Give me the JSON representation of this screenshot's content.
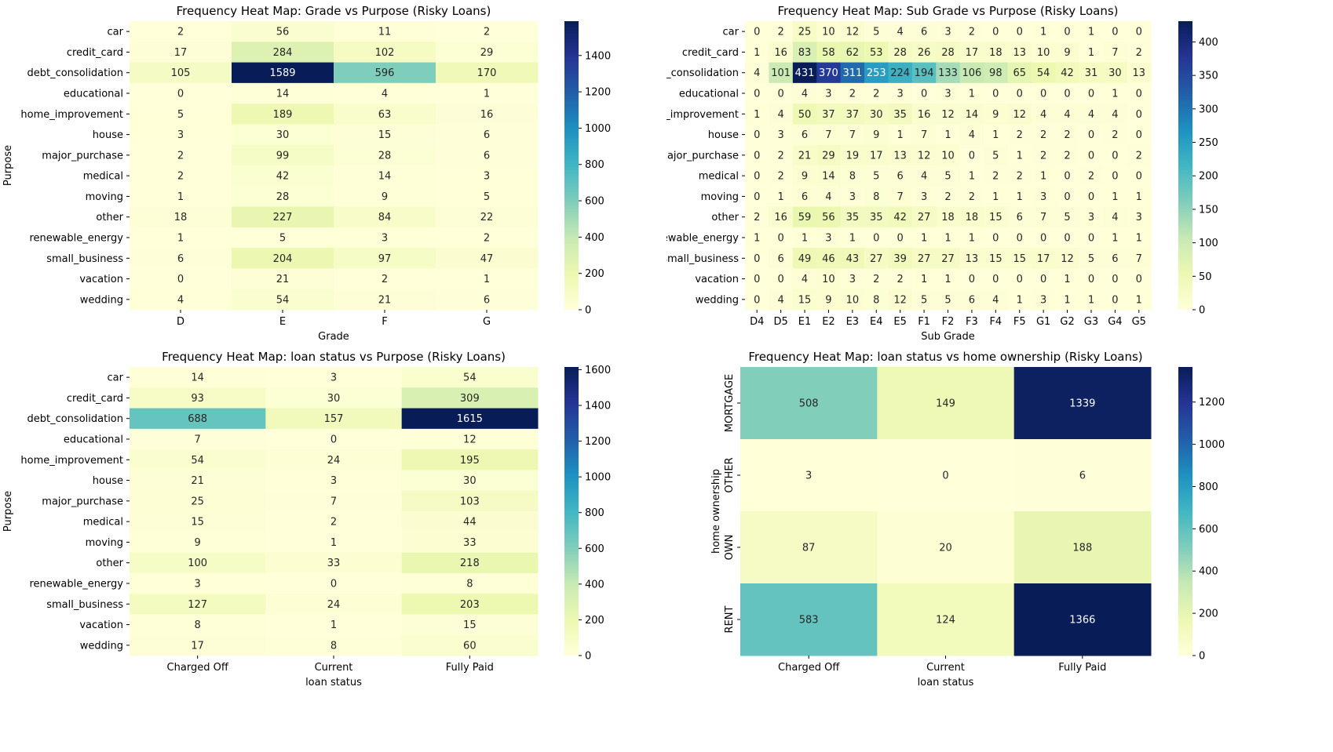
{
  "charts": [
    {
      "type": "heatmap",
      "title": "Frequency Heat Map: Grade vs Purpose (Risky Loans)",
      "xlabel": "Grade",
      "ylabel": "Purpose",
      "x_categories": [
        "D",
        "E",
        "F",
        "G"
      ],
      "y_categories": [
        "car",
        "credit_card",
        "debt_consolidation",
        "educational",
        "home_improvement",
        "house",
        "major_purchase",
        "medical",
        "moving",
        "other",
        "renewable_energy",
        "small_business",
        "vacation",
        "wedding"
      ],
      "values": [
        [
          2,
          56,
          11,
          2
        ],
        [
          17,
          284,
          102,
          29
        ],
        [
          105,
          1589,
          596,
          170
        ],
        [
          0,
          14,
          4,
          1
        ],
        [
          5,
          189,
          63,
          16
        ],
        [
          3,
          30,
          15,
          6
        ],
        [
          2,
          99,
          28,
          6
        ],
        [
          2,
          42,
          14,
          3
        ],
        [
          1,
          28,
          9,
          5
        ],
        [
          18,
          227,
          84,
          22
        ],
        [
          1,
          5,
          3,
          2
        ],
        [
          6,
          204,
          97,
          47
        ],
        [
          0,
          21,
          2,
          1
        ],
        [
          4,
          54,
          21,
          6
        ]
      ],
      "vmin": 0,
      "vmax": 1589,
      "colorbar_ticks": [
        0,
        200,
        400,
        600,
        800,
        1000,
        1200,
        1400
      ],
      "colormap": "YlGnBu",
      "rotate_y_ticks": false
    },
    {
      "type": "heatmap",
      "title": "Frequency Heat Map: Sub Grade vs Purpose (Risky Loans)",
      "xlabel": "Sub Grade",
      "ylabel": "Purpose",
      "x_categories": [
        "D4",
        "D5",
        "E1",
        "E2",
        "E3",
        "E4",
        "E5",
        "F1",
        "F2",
        "F3",
        "F4",
        "F5",
        "G1",
        "G2",
        "G3",
        "G4",
        "G5"
      ],
      "y_categories": [
        "car",
        "credit_card",
        "debt_consolidation",
        "educational",
        "home_improvement",
        "house",
        "major_purchase",
        "medical",
        "moving",
        "other",
        "renewable_energy",
        "small_business",
        "vacation",
        "wedding"
      ],
      "values": [
        [
          0,
          2,
          25,
          10,
          12,
          5,
          4,
          6,
          3,
          2,
          0,
          0,
          1,
          0,
          1,
          0,
          0
        ],
        [
          1,
          16,
          83,
          58,
          62,
          53,
          28,
          26,
          28,
          17,
          18,
          13,
          10,
          9,
          1,
          7,
          2
        ],
        [
          4,
          101,
          431,
          370,
          311,
          253,
          224,
          194,
          133,
          106,
          98,
          65,
          54,
          42,
          31,
          30,
          13
        ],
        [
          0,
          0,
          4,
          3,
          2,
          2,
          3,
          0,
          3,
          1,
          0,
          0,
          0,
          0,
          0,
          1,
          0
        ],
        [
          1,
          4,
          50,
          37,
          37,
          30,
          35,
          16,
          12,
          14,
          9,
          12,
          4,
          4,
          4,
          4,
          0
        ],
        [
          0,
          3,
          6,
          7,
          7,
          9,
          1,
          7,
          1,
          4,
          1,
          2,
          2,
          2,
          0,
          2,
          0
        ],
        [
          0,
          2,
          21,
          29,
          19,
          17,
          13,
          12,
          10,
          0,
          5,
          1,
          2,
          2,
          0,
          0,
          2
        ],
        [
          0,
          2,
          9,
          14,
          8,
          5,
          6,
          4,
          5,
          1,
          2,
          2,
          1,
          0,
          2,
          0,
          0
        ],
        [
          0,
          1,
          6,
          4,
          3,
          8,
          7,
          3,
          2,
          2,
          1,
          1,
          3,
          0,
          0,
          1,
          1
        ],
        [
          2,
          16,
          59,
          56,
          35,
          35,
          42,
          27,
          18,
          18,
          15,
          6,
          7,
          5,
          3,
          4,
          3
        ],
        [
          1,
          0,
          1,
          3,
          1,
          0,
          0,
          1,
          1,
          1,
          0,
          0,
          0,
          0,
          0,
          1,
          1
        ],
        [
          0,
          6,
          49,
          46,
          43,
          27,
          39,
          27,
          27,
          13,
          15,
          15,
          17,
          12,
          5,
          6,
          7
        ],
        [
          0,
          0,
          4,
          10,
          3,
          2,
          2,
          1,
          1,
          0,
          0,
          0,
          0,
          1,
          0,
          0,
          0
        ],
        [
          0,
          4,
          15,
          9,
          10,
          8,
          12,
          5,
          5,
          6,
          4,
          1,
          3,
          1,
          1,
          0,
          1
        ]
      ],
      "vmin": 0,
      "vmax": 431,
      "colorbar_ticks": [
        0,
        50,
        100,
        150,
        200,
        250,
        300,
        350,
        400
      ],
      "colormap": "YlGnBu",
      "rotate_y_ticks": false
    },
    {
      "type": "heatmap",
      "title": "Frequency Heat Map: loan status vs Purpose (Risky Loans)",
      "xlabel": "loan status",
      "ylabel": "Purpose",
      "x_categories": [
        "Charged Off",
        "Current",
        "Fully Paid"
      ],
      "y_categories": [
        "car",
        "credit_card",
        "debt_consolidation",
        "educational",
        "home_improvement",
        "house",
        "major_purchase",
        "medical",
        "moving",
        "other",
        "renewable_energy",
        "small_business",
        "vacation",
        "wedding"
      ],
      "values": [
        [
          14,
          3,
          54
        ],
        [
          93,
          30,
          309
        ],
        [
          688,
          157,
          1615
        ],
        [
          7,
          0,
          12
        ],
        [
          54,
          24,
          195
        ],
        [
          21,
          3,
          30
        ],
        [
          25,
          7,
          103
        ],
        [
          15,
          2,
          44
        ],
        [
          9,
          1,
          33
        ],
        [
          100,
          33,
          218
        ],
        [
          3,
          0,
          8
        ],
        [
          127,
          24,
          203
        ],
        [
          8,
          1,
          15
        ],
        [
          17,
          8,
          60
        ]
      ],
      "vmin": 0,
      "vmax": 1615,
      "colorbar_ticks": [
        0,
        200,
        400,
        600,
        800,
        1000,
        1200,
        1400,
        1600
      ],
      "colormap": "YlGnBu",
      "rotate_y_ticks": false
    },
    {
      "type": "heatmap",
      "title": "Frequency Heat Map: loan status vs home ownership (Risky Loans)",
      "xlabel": "loan status",
      "ylabel": "home ownership",
      "x_categories": [
        "Charged Off",
        "Current",
        "Fully Paid"
      ],
      "y_categories": [
        "MORTGAGE",
        "OTHER",
        "OWN",
        "RENT"
      ],
      "values": [
        [
          508,
          149,
          1339
        ],
        [
          3,
          0,
          6
        ],
        [
          87,
          20,
          188
        ],
        [
          583,
          124,
          1366
        ]
      ],
      "vmin": 0,
      "vmax": 1366,
      "colorbar_ticks": [
        0,
        200,
        400,
        600,
        800,
        1000,
        1200
      ],
      "colormap": "YlGnBu",
      "rotate_y_ticks": true
    }
  ]
}
